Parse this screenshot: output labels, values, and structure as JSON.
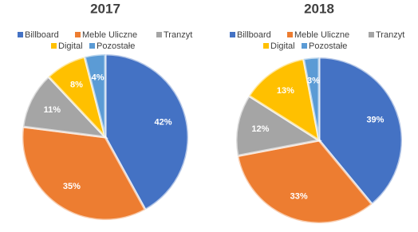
{
  "chart_data": [
    {
      "type": "pie",
      "title": "2017",
      "categories": [
        "Billboard",
        "Meble Uliczne",
        "Tranzyt",
        "Digital",
        "Pozostałe"
      ],
      "values": [
        42,
        35,
        11,
        8,
        4
      ],
      "value_labels": [
        "42%",
        "35%",
        "11%",
        "8%",
        "4%"
      ],
      "colors": [
        "#4472c4",
        "#ed7d31",
        "#a5a5a5",
        "#ffc000",
        "#5b9bd5"
      ]
    },
    {
      "type": "pie",
      "title": "2018",
      "categories": [
        "Billboard",
        "Meble Uliczne",
        "Tranzyt",
        "Digital",
        "Pozostałe"
      ],
      "values": [
        39,
        33,
        12,
        13,
        3
      ],
      "value_labels": [
        "39%",
        "33%",
        "12%",
        "13%",
        "3%"
      ],
      "colors": [
        "#4472c4",
        "#ed7d31",
        "#a5a5a5",
        "#ffc000",
        "#5b9bd5"
      ]
    }
  ]
}
